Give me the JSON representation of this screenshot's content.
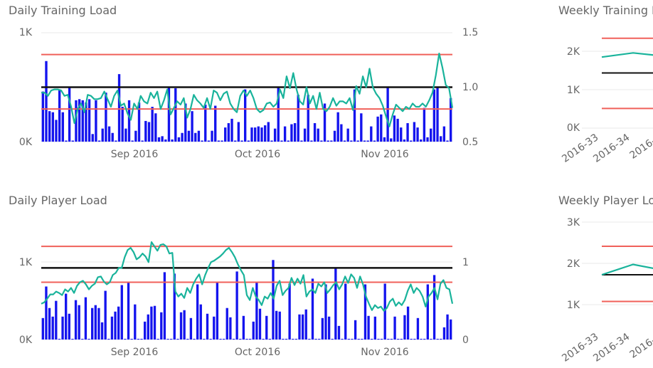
{
  "panels": [
    {
      "title": "Daily Training Load",
      "y_ticks": [
        "1K",
        "0K"
      ],
      "y2_ticks": [
        "1.5",
        "1.0",
        "0.5"
      ],
      "x_ticks": [
        "Sep 2016",
        "Oct 2016",
        "Nov 2016"
      ]
    },
    {
      "title": "Daily Player Load",
      "y_ticks": [
        "1K",
        "0K"
      ],
      "y2_ticks": [
        "1",
        "0"
      ],
      "x_ticks": [
        "Sep 2016",
        "Oct 2016",
        "Nov 2016"
      ]
    },
    {
      "title": "Weekly Training L",
      "y_ticks": [
        "2K",
        "1K",
        "0K"
      ],
      "x_ticks": [
        "2016-33",
        "2016-34",
        "2016-3"
      ]
    },
    {
      "title": "Weekly Player Lo",
      "y_ticks": [
        "3K",
        "2K",
        "1K"
      ],
      "x_ticks": [
        "2016-33",
        "2016-34",
        "2016-3"
      ]
    }
  ],
  "colors": {
    "bar": "#1414ee",
    "ratio_line": "#19b39b",
    "red_ref": "#f0605a",
    "black_ref": "#111111",
    "grid": "#e8e8e8"
  },
  "chart_data": [
    {
      "type": "bar",
      "title": "Daily Training Load",
      "y_ticks": [
        "0K",
        "1K"
      ],
      "ylim": [
        0,
        1000
      ],
      "y2lim": [
        0.5,
        1.5
      ],
      "x_ticks": [
        "Sep 2016",
        "Oct 2016",
        "Nov 2016"
      ],
      "bars": [
        460,
        740,
        280,
        270,
        200,
        480,
        270,
        10,
        500,
        10,
        380,
        390,
        380,
        360,
        390,
        70,
        380,
        10,
        120,
        450,
        140,
        80,
        10,
        620,
        320,
        120,
        380,
        10,
        100,
        360,
        10,
        190,
        180,
        320,
        260,
        40,
        50,
        20,
        500,
        20,
        490,
        40,
        80,
        350,
        100,
        280,
        80,
        100,
        10,
        340,
        10,
        100,
        330,
        10,
        10,
        130,
        170,
        210,
        10,
        180,
        10,
        480,
        10,
        130,
        130,
        140,
        130,
        150,
        180,
        10,
        120,
        500,
        10,
        140,
        10,
        160,
        170,
        430,
        10,
        120,
        430,
        10,
        170,
        120,
        10,
        350,
        10,
        10,
        100,
        270,
        160,
        10,
        120,
        10,
        480,
        10,
        260,
        10,
        10,
        140,
        10,
        230,
        250,
        40,
        500,
        30,
        240,
        210,
        130,
        20,
        170,
        10,
        180,
        130,
        20,
        310,
        40,
        120,
        480,
        500,
        50,
        140,
        10,
        400
      ],
      "ratio": [
        0.95,
        0.95,
        0.92,
        0.97,
        0.98,
        0.98,
        0.97,
        0.92,
        0.93,
        0.82,
        0.67,
        0.8,
        0.85,
        0.77,
        0.93,
        0.92,
        0.89,
        0.89,
        0.9,
        0.96,
        0.89,
        0.82,
        0.92,
        0.97,
        0.83,
        0.85,
        0.76,
        0.7,
        0.85,
        0.8,
        0.92,
        0.87,
        0.85,
        0.95,
        0.9,
        0.96,
        0.8,
        0.88,
        0.98,
        0.75,
        0.81,
        0.87,
        0.84,
        0.9,
        0.72,
        0.8,
        0.93,
        0.88,
        0.85,
        0.81,
        0.9,
        0.8,
        0.97,
        0.95,
        0.88,
        0.94,
        0.96,
        0.85,
        0.8,
        0.77,
        0.92,
        0.97,
        0.92,
        0.97,
        0.9,
        0.8,
        0.77,
        0.79,
        0.85,
        0.86,
        0.82,
        0.85,
        0.98,
        0.9,
        1.1,
        0.99,
        1.13,
        0.98,
        0.87,
        0.84,
        1.0,
        0.85,
        0.92,
        0.8,
        0.95,
        0.8,
        0.78,
        0.82,
        0.9,
        0.83,
        0.87,
        0.87,
        0.85,
        0.9,
        0.79,
        1.01,
        0.94,
        1.1,
        1.0,
        1.17,
        1.0,
        0.94,
        0.9,
        0.83,
        0.73,
        0.64,
        0.75,
        0.84,
        0.81,
        0.78,
        0.82,
        0.8,
        0.85,
        0.82,
        0.82,
        0.85,
        0.82,
        0.88,
        0.95,
        1.11,
        1.31,
        1.18,
        1.02,
        0.99,
        0.81
      ],
      "ref_lines": {
        "red_high": 1.3,
        "black": 1.0,
        "red_low": 0.8
      }
    },
    {
      "type": "bar",
      "title": "Daily Player Load",
      "y_ticks": [
        "0K",
        "1K"
      ],
      "ylim": [
        0,
        1550
      ],
      "y2lim": [
        0,
        1.55
      ],
      "x_ticks": [
        "Sep 2016",
        "Oct 2016",
        "Nov 2016"
      ],
      "bars": [
        300,
        740,
        440,
        320,
        540,
        10,
        320,
        640,
        360,
        10,
        550,
        480,
        10,
        590,
        10,
        440,
        480,
        440,
        240,
        680,
        10,
        320,
        390,
        460,
        760,
        10,
        790,
        10,
        490,
        10,
        10,
        250,
        350,
        460,
        470,
        10,
        380,
        940,
        10,
        10,
        920,
        10,
        380,
        410,
        10,
        300,
        10,
        770,
        490,
        10,
        360,
        10,
        320,
        790,
        10,
        10,
        440,
        310,
        10,
        950,
        10,
        330,
        10,
        10,
        250,
        800,
        430,
        10,
        330,
        10,
        1110,
        400,
        390,
        10,
        10,
        780,
        10,
        10,
        350,
        350,
        420,
        10,
        850,
        10,
        10,
        300,
        770,
        320,
        10,
        1000,
        190,
        10,
        780,
        10,
        10,
        270,
        10,
        10,
        770,
        330,
        10,
        320,
        10,
        10,
        780,
        10,
        10,
        320,
        10,
        10,
        340,
        460,
        10,
        10,
        300,
        10,
        10,
        770,
        10,
        900,
        10,
        10,
        170,
        350,
        280
      ],
      "ratio": [
        0.5,
        0.52,
        0.57,
        0.63,
        0.63,
        0.67,
        0.65,
        0.62,
        0.7,
        0.67,
        0.72,
        0.65,
        0.75,
        0.8,
        0.82,
        0.77,
        0.7,
        0.75,
        0.78,
        0.87,
        0.88,
        0.81,
        0.77,
        0.8,
        0.9,
        0.93,
        1.0,
        1.0,
        1.15,
        1.25,
        1.28,
        1.22,
        1.12,
        1.15,
        1.2,
        1.16,
        1.08,
        1.36,
        1.3,
        1.24,
        1.32,
        1.33,
        1.3,
        1.2,
        1.21,
        0.67,
        0.6,
        0.64,
        0.58,
        0.72,
        0.65,
        0.77,
        0.85,
        0.91,
        0.77,
        0.9,
        1.0,
        1.08,
        1.1,
        1.13,
        1.16,
        1.2,
        1.25,
        1.28,
        1.22,
        1.15,
        1.05,
        0.97,
        0.9,
        0.62,
        0.55,
        0.72,
        0.6,
        0.55,
        0.48,
        0.6,
        0.57,
        0.65,
        0.57,
        0.75,
        0.82,
        0.62,
        0.68,
        0.72,
        0.86,
        0.76,
        0.85,
        0.78,
        0.9,
        0.6,
        0.67,
        0.7,
        0.65,
        0.78,
        0.74,
        0.8,
        0.65,
        0.7,
        0.76,
        0.8,
        0.7,
        0.77,
        0.88,
        0.79,
        0.91,
        0.86,
        0.72,
        0.88,
        0.77,
        0.6,
        0.5,
        0.41,
        0.48,
        0.44,
        0.46,
        0.4,
        0.44,
        0.53,
        0.57,
        0.47,
        0.52,
        0.48,
        0.55,
        0.68,
        0.77,
        0.65,
        0.72,
        0.68,
        0.6,
        0.46,
        0.6,
        0.65,
        0.72,
        0.56,
        0.78,
        0.83,
        0.72,
        0.7,
        0.5
      ],
      "ref_lines": {
        "red_high": 1.3,
        "black": 1.0,
        "red_low": 0.8
      }
    },
    {
      "type": "line",
      "title": "Weekly Training L",
      "y_ticks": [
        "0K",
        "1K",
        "2K"
      ],
      "ylim": [
        0,
        2300
      ],
      "x": [
        "2016-33",
        "2016-34",
        "2016-3"
      ],
      "series": [
        {
          "values": [
            1700,
            1800,
            1720
          ]
        }
      ],
      "ref_lines": {
        "red_high": 2150,
        "black": 1320,
        "red_low": 470
      }
    },
    {
      "type": "line",
      "title": "Weekly Player Lo",
      "y_ticks": [
        "1K",
        "2K",
        "3K"
      ],
      "ylim": [
        300,
        3000
      ],
      "x": [
        "2016-33",
        "2016-34",
        "2016-3"
      ],
      "series": [
        {
          "values": [
            1500,
            1790,
            1620
          ]
        }
      ],
      "ref_lines": {
        "red_high": 2300,
        "black": 1500,
        "red_low": 750
      }
    }
  ]
}
